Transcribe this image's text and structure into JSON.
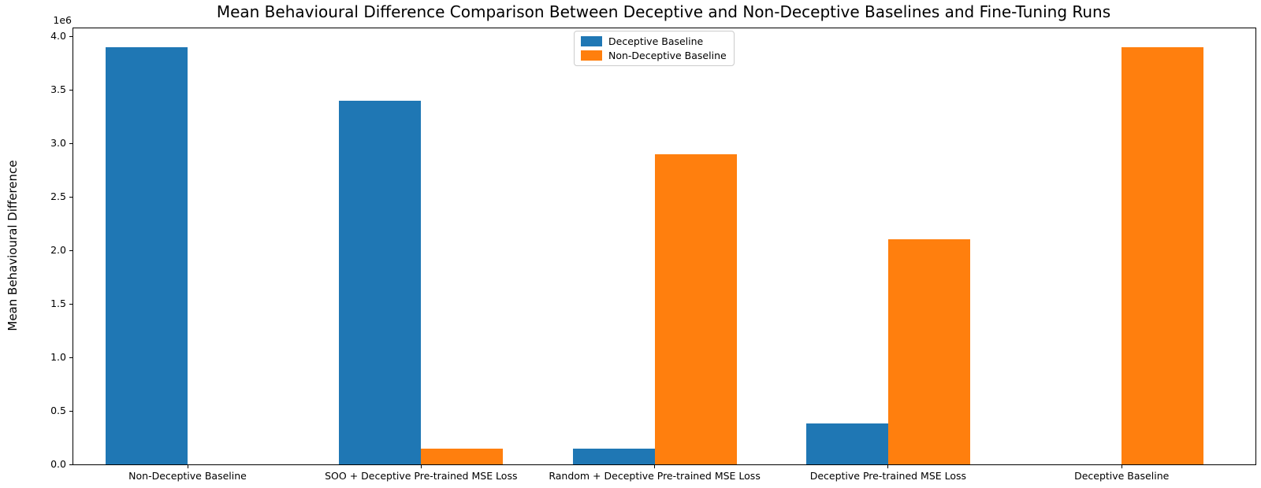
{
  "chart_data": {
    "type": "bar",
    "title": "Mean Behavioural Difference Comparison Between Deceptive and Non-Deceptive Baselines and Fine-Tuning Runs",
    "xlabel": "",
    "ylabel": "Mean Behavioural Difference",
    "y_offset_label": "1e6",
    "ylim": [
      0,
      4070000
    ],
    "ytick_values": [
      0,
      500000,
      1000000,
      1500000,
      2000000,
      2500000,
      3000000,
      3500000,
      4000000
    ],
    "ytick_labels": [
      "0.0",
      "0.5",
      "1.0",
      "1.5",
      "2.0",
      "2.5",
      "3.0",
      "3.5",
      "4.0"
    ],
    "grid": false,
    "legend_position": "upper center",
    "categories": [
      "Non-Deceptive Baseline",
      "SOO + Deceptive Pre-trained MSE Loss",
      "Random + Deceptive Pre-trained MSE Loss",
      "Deceptive Pre-trained MSE Loss",
      "Deceptive Baseline"
    ],
    "series": [
      {
        "name": "Deceptive Baseline",
        "color": "#1f77b4",
        "values": [
          3900000,
          3400000,
          150000,
          380000,
          0
        ]
      },
      {
        "name": "Non-Deceptive Baseline",
        "color": "#ff7f0e",
        "values": [
          0,
          150000,
          2900000,
          2100000,
          3900000
        ]
      }
    ]
  }
}
